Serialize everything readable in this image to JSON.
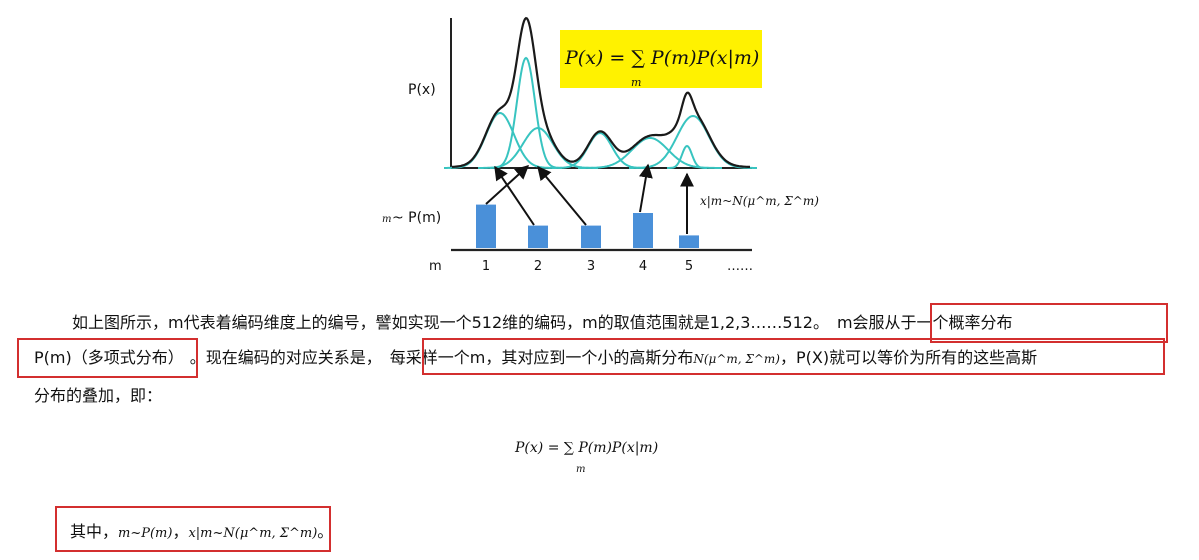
{
  "figure": {
    "formula_box": "P(x) = ∑ P(m)P(x|m)",
    "formula_box_sub": "m",
    "y_label": "P(x)",
    "m_label_small": "m",
    "m_label_tail": "~ P(m)",
    "x_axis_label": "m",
    "ticks": [
      "1",
      "2",
      "3",
      "4",
      "5",
      "……"
    ],
    "arrow_label": "x|m~N(μ^m, Σ^m)",
    "bar_values": [
      0.62,
      0.32,
      0.32,
      0.5,
      0.18
    ],
    "colors": {
      "bars": "#4a90d9",
      "gauss": "#38c4c0",
      "envelope": "#1a1a1a",
      "highlight": "#fff200"
    }
  },
  "paragraph": {
    "line1_pre": "如上图所示，m代表着编码维度上的编号，譬如实现一个512维的编码，m的取值范围就是1,2,3……512。",
    "line1_box": "m会服从于一个概率分布",
    "line2_box1": "P(m)（多项式分布）",
    "line2_mid": "。现在编码的对应关系是，",
    "line2_box2a": "每采样一个m，其对应到一个小的高斯分布",
    "line2_box2_math": "N(μ^m, Σ^m)",
    "line2_box2b": "，P(X)就可以等价为所有的这些高斯",
    "line3": "分布的叠加，即："
  },
  "formula": {
    "main": "P(x) = ∑ P(m)P(x|m)",
    "sub": "m"
  },
  "note": {
    "pre": "其中，",
    "math1": "m~P(m)",
    "sep": "，",
    "math2": "x|m~N(μ^m, Σ^m)",
    "post": "。"
  },
  "highlight_color": "#d32f2f"
}
